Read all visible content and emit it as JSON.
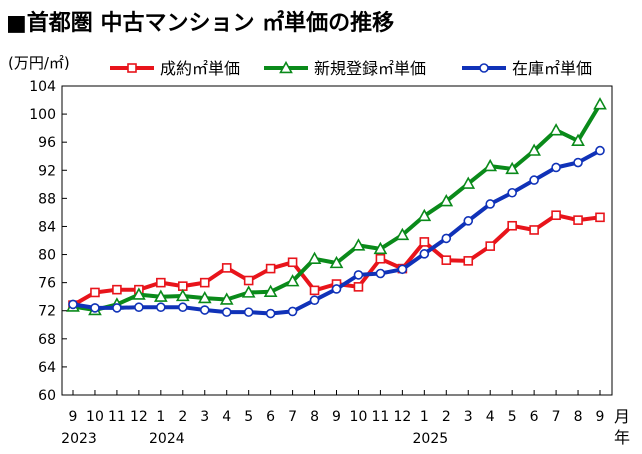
{
  "chart_data": {
    "type": "line",
    "title": "■首都圏 中古マンション ㎡単価の推移",
    "ylabel": "(万円/㎡)",
    "xlabel": "月",
    "year_suffix": "年",
    "ylim": [
      60,
      104
    ],
    "yticks": [
      60,
      64,
      68,
      72,
      76,
      80,
      84,
      88,
      92,
      96,
      100,
      104
    ],
    "grid": false,
    "legend_position": "top",
    "month_labels": [
      "9",
      "10",
      "11",
      "12",
      "1",
      "2",
      "3",
      "4",
      "5",
      "6",
      "7",
      "8",
      "9",
      "10",
      "11",
      "12",
      "1",
      "2",
      "3",
      "4",
      "5",
      "6",
      "7",
      "8",
      "9"
    ],
    "year_labels": [
      {
        "index": 0,
        "text": "2023"
      },
      {
        "index": 4,
        "text": "2024"
      },
      {
        "index": 16,
        "text": "2025"
      }
    ],
    "series": [
      {
        "name": "成約㎡単価",
        "color": "#e8141b",
        "marker": "square",
        "values": [
          72.8,
          74.6,
          75.0,
          75.0,
          76.0,
          75.5,
          76.0,
          78.1,
          76.3,
          78.0,
          78.9,
          74.9,
          75.8,
          75.4,
          79.4,
          78.0,
          81.8,
          79.2,
          79.1,
          81.2,
          84.1,
          83.5,
          85.6,
          84.9,
          85.3
        ]
      },
      {
        "name": "新規登録㎡単価",
        "color": "#0a8a1a",
        "marker": "triangle",
        "values": [
          72.6,
          72.1,
          72.9,
          74.3,
          74.0,
          74.1,
          73.8,
          73.6,
          74.6,
          74.7,
          76.2,
          79.4,
          78.8,
          81.3,
          80.8,
          82.8,
          85.5,
          87.6,
          90.1,
          92.6,
          92.2,
          94.8,
          97.7,
          96.2,
          101.4
        ]
      },
      {
        "name": "在庫㎡単価",
        "color": "#1032b8",
        "marker": "circle",
        "values": [
          72.9,
          72.4,
          72.4,
          72.5,
          72.5,
          72.5,
          72.1,
          71.8,
          71.8,
          71.6,
          71.9,
          73.5,
          75.1,
          77.1,
          77.3,
          77.9,
          80.1,
          82.3,
          84.8,
          87.2,
          88.8,
          90.6,
          92.4,
          93.1,
          94.8
        ]
      }
    ]
  }
}
